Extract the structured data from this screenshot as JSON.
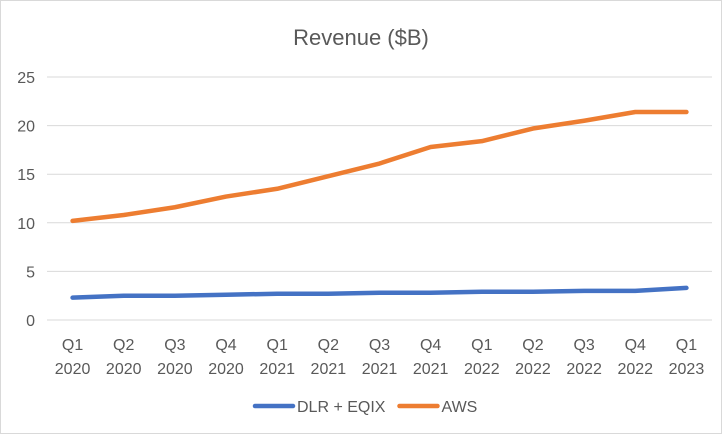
{
  "chart_data": {
    "type": "line",
    "title": "Revenue ($B)",
    "xlabel": "",
    "ylabel": "",
    "categories": [
      [
        "Q1",
        "2020"
      ],
      [
        "Q2",
        "2020"
      ],
      [
        "Q3",
        "2020"
      ],
      [
        "Q4",
        "2020"
      ],
      [
        "Q1",
        "2021"
      ],
      [
        "Q2",
        "2021"
      ],
      [
        "Q3",
        "2021"
      ],
      [
        "Q4",
        "2021"
      ],
      [
        "Q1",
        "2022"
      ],
      [
        "Q2",
        "2022"
      ],
      [
        "Q3",
        "2022"
      ],
      [
        "Q4",
        "2022"
      ],
      [
        "Q1",
        "2023"
      ]
    ],
    "ylim": [
      0,
      25
    ],
    "yticks": [
      0,
      5,
      10,
      15,
      20,
      25
    ],
    "grid": true,
    "legend_position": "bottom",
    "series": [
      {
        "name": "DLR + EQIX",
        "color": "#4472c4",
        "values": [
          2.3,
          2.5,
          2.5,
          2.6,
          2.7,
          2.7,
          2.8,
          2.8,
          2.9,
          2.9,
          3.0,
          3.0,
          3.3
        ]
      },
      {
        "name": "AWS",
        "color": "#ed7d31",
        "values": [
          10.2,
          10.8,
          11.6,
          12.7,
          13.5,
          14.8,
          16.1,
          17.8,
          18.4,
          19.7,
          20.5,
          21.4,
          21.4
        ]
      }
    ]
  }
}
